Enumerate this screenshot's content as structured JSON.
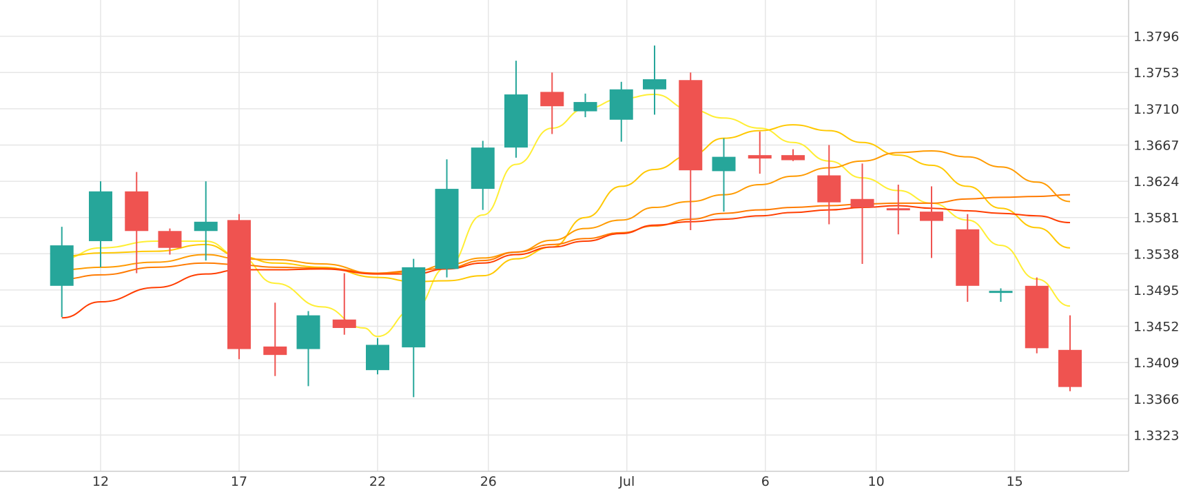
{
  "chart_data": {
    "type": "candlestick",
    "x_ticks": [
      {
        "day": 2,
        "label": "12"
      },
      {
        "day": 7,
        "label": "17"
      },
      {
        "day": 12,
        "label": "22"
      },
      {
        "day": 16,
        "label": "26"
      },
      {
        "day": 21,
        "label": "Jul"
      },
      {
        "day": 26,
        "label": "6"
      },
      {
        "day": 30,
        "label": "10"
      },
      {
        "day": 35,
        "label": "15"
      }
    ],
    "y_ticks": [
      "1.3323",
      "1.3366",
      "1.3409",
      "1.3452",
      "1.3495",
      "1.3538",
      "1.3581",
      "1.3624",
      "1.3667",
      "1.3710",
      "1.3753",
      "1.3796"
    ],
    "ylim": [
      1.328,
      1.3839
    ],
    "grid": true,
    "colors": {
      "up": "#26a69a",
      "down": "#ef5350",
      "grid": "#e6e6e6",
      "axis": "#cccccc"
    },
    "candles": [
      {
        "day": 0.6,
        "open": 1.35,
        "high": 1.357,
        "low": 1.3463,
        "close": 1.3548
      },
      {
        "day": 2,
        "open": 1.3553,
        "high": 1.3624,
        "low": 1.3522,
        "close": 1.3612
      },
      {
        "day": 3.3,
        "open": 1.3612,
        "high": 1.3635,
        "low": 1.3515,
        "close": 1.3565
      },
      {
        "day": 4.5,
        "open": 1.3565,
        "high": 1.3568,
        "low": 1.3537,
        "close": 1.3545
      },
      {
        "day": 5.8,
        "open": 1.3565,
        "high": 1.3624,
        "low": 1.353,
        "close": 1.3576
      },
      {
        "day": 7,
        "open": 1.3578,
        "high": 1.3585,
        "low": 1.3413,
        "close": 1.3425
      },
      {
        "day": 8.3,
        "open": 1.3428,
        "high": 1.348,
        "low": 1.3393,
        "close": 1.3418
      },
      {
        "day": 9.5,
        "open": 1.3425,
        "high": 1.347,
        "low": 1.3381,
        "close": 1.3465
      },
      {
        "day": 10.8,
        "open": 1.346,
        "high": 1.3515,
        "low": 1.3442,
        "close": 1.345
      },
      {
        "day": 12,
        "open": 1.34,
        "high": 1.3438,
        "low": 1.3395,
        "close": 1.343
      },
      {
        "day": 13.3,
        "open": 1.3427,
        "high": 1.3532,
        "low": 1.3368,
        "close": 1.3522
      },
      {
        "day": 14.5,
        "open": 1.352,
        "high": 1.365,
        "low": 1.351,
        "close": 1.3615
      },
      {
        "day": 15.8,
        "open": 1.3615,
        "high": 1.3672,
        "low": 1.359,
        "close": 1.3664
      },
      {
        "day": 17,
        "open": 1.3664,
        "high": 1.3767,
        "low": 1.3652,
        "close": 1.3727
      },
      {
        "day": 18.3,
        "open": 1.373,
        "high": 1.3753,
        "low": 1.368,
        "close": 1.3713
      },
      {
        "day": 19.5,
        "open": 1.3707,
        "high": 1.3728,
        "low": 1.37,
        "close": 1.3718
      },
      {
        "day": 20.8,
        "open": 1.3697,
        "high": 1.3742,
        "low": 1.3671,
        "close": 1.3733
      },
      {
        "day": 22,
        "open": 1.3733,
        "high": 1.3785,
        "low": 1.3703,
        "close": 1.3745
      },
      {
        "day": 23.3,
        "open": 1.3744,
        "high": 1.3753,
        "low": 1.3566,
        "close": 1.3637
      },
      {
        "day": 24.5,
        "open": 1.3636,
        "high": 1.3675,
        "low": 1.3588,
        "close": 1.3653
      },
      {
        "day": 25.8,
        "open": 1.3655,
        "high": 1.3683,
        "low": 1.3633,
        "close": 1.3651
      },
      {
        "day": 27,
        "open": 1.3655,
        "high": 1.3662,
        "low": 1.3648,
        "close": 1.3649
      },
      {
        "day": 28.3,
        "open": 1.3631,
        "high": 1.3667,
        "low": 1.3573,
        "close": 1.3599
      },
      {
        "day": 29.5,
        "open": 1.3603,
        "high": 1.3645,
        "low": 1.3526,
        "close": 1.3593
      },
      {
        "day": 30.8,
        "open": 1.3592,
        "high": 1.362,
        "low": 1.3561,
        "close": 1.359
      },
      {
        "day": 32,
        "open": 1.3588,
        "high": 1.3618,
        "low": 1.3533,
        "close": 1.3577
      },
      {
        "day": 33.3,
        "open": 1.3567,
        "high": 1.3585,
        "low": 1.3481,
        "close": 1.35
      },
      {
        "day": 34.5,
        "open": 1.3492,
        "high": 1.3497,
        "low": 1.3481,
        "close": 1.3494
      },
      {
        "day": 35.8,
        "open": 1.35,
        "high": 1.351,
        "low": 1.342,
        "close": 1.3426
      },
      {
        "day": 37,
        "open": 1.3424,
        "high": 1.3465,
        "low": 1.3375,
        "close": 1.338
      }
    ],
    "moving_averages": [
      {
        "color": "#ffee33",
        "values": [
          [
            0.6,
            1.3532
          ],
          [
            2,
            1.3545
          ],
          [
            4,
            1.3553
          ],
          [
            5.8,
            1.3553
          ],
          [
            7,
            1.3535
          ],
          [
            8.3,
            1.3503
          ],
          [
            10,
            1.3475
          ],
          [
            11.5,
            1.345
          ],
          [
            12,
            1.344
          ],
          [
            13.3,
            1.3472
          ],
          [
            14.5,
            1.3522
          ],
          [
            15.8,
            1.3584
          ],
          [
            17,
            1.3644
          ],
          [
            18.3,
            1.3687
          ],
          [
            19.5,
            1.371
          ],
          [
            20.8,
            1.3722
          ],
          [
            22,
            1.3727
          ],
          [
            23.3,
            1.3709
          ],
          [
            24.5,
            1.3699
          ],
          [
            25.8,
            1.3687
          ],
          [
            27,
            1.367
          ],
          [
            28.3,
            1.3648
          ],
          [
            29.5,
            1.3628
          ],
          [
            30.8,
            1.3613
          ],
          [
            32,
            1.3598
          ],
          [
            33.3,
            1.3578
          ],
          [
            34.5,
            1.3548
          ],
          [
            35.8,
            1.3508
          ],
          [
            37,
            1.3476
          ]
        ]
      },
      {
        "color": "#ffc800",
        "values": [
          [
            0.6,
            1.3535
          ],
          [
            2,
            1.3539
          ],
          [
            4,
            1.3541
          ],
          [
            5.8,
            1.3549
          ],
          [
            7,
            1.3535
          ],
          [
            8.3,
            1.3527
          ],
          [
            10,
            1.3522
          ],
          [
            12,
            1.351
          ],
          [
            13.3,
            1.3505
          ],
          [
            14.5,
            1.3506
          ],
          [
            15.8,
            1.3512
          ],
          [
            17,
            1.3532
          ],
          [
            18.3,
            1.3546
          ],
          [
            19.5,
            1.3581
          ],
          [
            20.8,
            1.3618
          ],
          [
            22,
            1.3638
          ],
          [
            23.3,
            1.3655
          ],
          [
            24.5,
            1.3675
          ],
          [
            25.8,
            1.3684
          ],
          [
            27,
            1.3691
          ],
          [
            28.3,
            1.3684
          ],
          [
            29.5,
            1.367
          ],
          [
            30.8,
            1.3655
          ],
          [
            32,
            1.3643
          ],
          [
            33.3,
            1.3618
          ],
          [
            34.5,
            1.3592
          ],
          [
            35.8,
            1.3569
          ],
          [
            37,
            1.3545
          ]
        ]
      },
      {
        "color": "#ff9a00",
        "values": [
          [
            0.6,
            1.3519
          ],
          [
            2,
            1.3522
          ],
          [
            4,
            1.3528
          ],
          [
            5.8,
            1.3537
          ],
          [
            7,
            1.3532
          ],
          [
            8.3,
            1.3531
          ],
          [
            10,
            1.3526
          ],
          [
            12,
            1.3514
          ],
          [
            13.3,
            1.3517
          ],
          [
            14.5,
            1.3525
          ],
          [
            15.8,
            1.3533
          ],
          [
            17,
            1.354
          ],
          [
            18.3,
            1.3554
          ],
          [
            19.5,
            1.3568
          ],
          [
            20.8,
            1.3578
          ],
          [
            22,
            1.3593
          ],
          [
            23.3,
            1.36
          ],
          [
            24.5,
            1.3608
          ],
          [
            25.8,
            1.362
          ],
          [
            27,
            1.363
          ],
          [
            28.3,
            1.364
          ],
          [
            29.5,
            1.3648
          ],
          [
            30.8,
            1.3658
          ],
          [
            32,
            1.366
          ],
          [
            33.3,
            1.3653
          ],
          [
            34.5,
            1.3641
          ],
          [
            35.8,
            1.3623
          ],
          [
            37,
            1.36
          ]
        ]
      },
      {
        "color": "#ff7a00",
        "values": [
          [
            0.6,
            1.3508
          ],
          [
            2,
            1.3513
          ],
          [
            4,
            1.3522
          ],
          [
            5.8,
            1.3527
          ],
          [
            7,
            1.3525
          ],
          [
            8.3,
            1.3522
          ],
          [
            10,
            1.3521
          ],
          [
            12,
            1.3515
          ],
          [
            13.3,
            1.3518
          ],
          [
            14.5,
            1.3521
          ],
          [
            15.8,
            1.353
          ],
          [
            17,
            1.354
          ],
          [
            18.3,
            1.3549
          ],
          [
            19.5,
            1.3556
          ],
          [
            20.8,
            1.3563
          ],
          [
            22,
            1.3571
          ],
          [
            23.3,
            1.3579
          ],
          [
            24.5,
            1.3586
          ],
          [
            25.8,
            1.359
          ],
          [
            27,
            1.3593
          ],
          [
            28.3,
            1.3595
          ],
          [
            29.5,
            1.3597
          ],
          [
            30.8,
            1.3598
          ],
          [
            32,
            1.3598
          ],
          [
            33.3,
            1.3603
          ],
          [
            34.5,
            1.3605
          ],
          [
            35.8,
            1.3606
          ],
          [
            37,
            1.3608
          ]
        ]
      },
      {
        "color": "#ff3d00",
        "values": [
          [
            0.6,
            1.3462
          ],
          [
            2,
            1.3481
          ],
          [
            4,
            1.3498
          ],
          [
            5.8,
            1.3514
          ],
          [
            7,
            1.3519
          ],
          [
            8.3,
            1.3519
          ],
          [
            10,
            1.352
          ],
          [
            12,
            1.3514
          ],
          [
            13.3,
            1.3514
          ],
          [
            14.5,
            1.352
          ],
          [
            15.8,
            1.3527
          ],
          [
            17,
            1.3537
          ],
          [
            18.3,
            1.3546
          ],
          [
            19.5,
            1.3553
          ],
          [
            20.8,
            1.3562
          ],
          [
            22,
            1.3572
          ],
          [
            23.3,
            1.3576
          ],
          [
            24.5,
            1.3579
          ],
          [
            25.8,
            1.3583
          ],
          [
            27,
            1.3587
          ],
          [
            28.3,
            1.359
          ],
          [
            29.5,
            1.3593
          ],
          [
            30.8,
            1.3595
          ],
          [
            32,
            1.3592
          ],
          [
            33.3,
            1.3589
          ],
          [
            34.5,
            1.3586
          ],
          [
            35.8,
            1.3583
          ],
          [
            37,
            1.3575
          ]
        ]
      }
    ]
  }
}
